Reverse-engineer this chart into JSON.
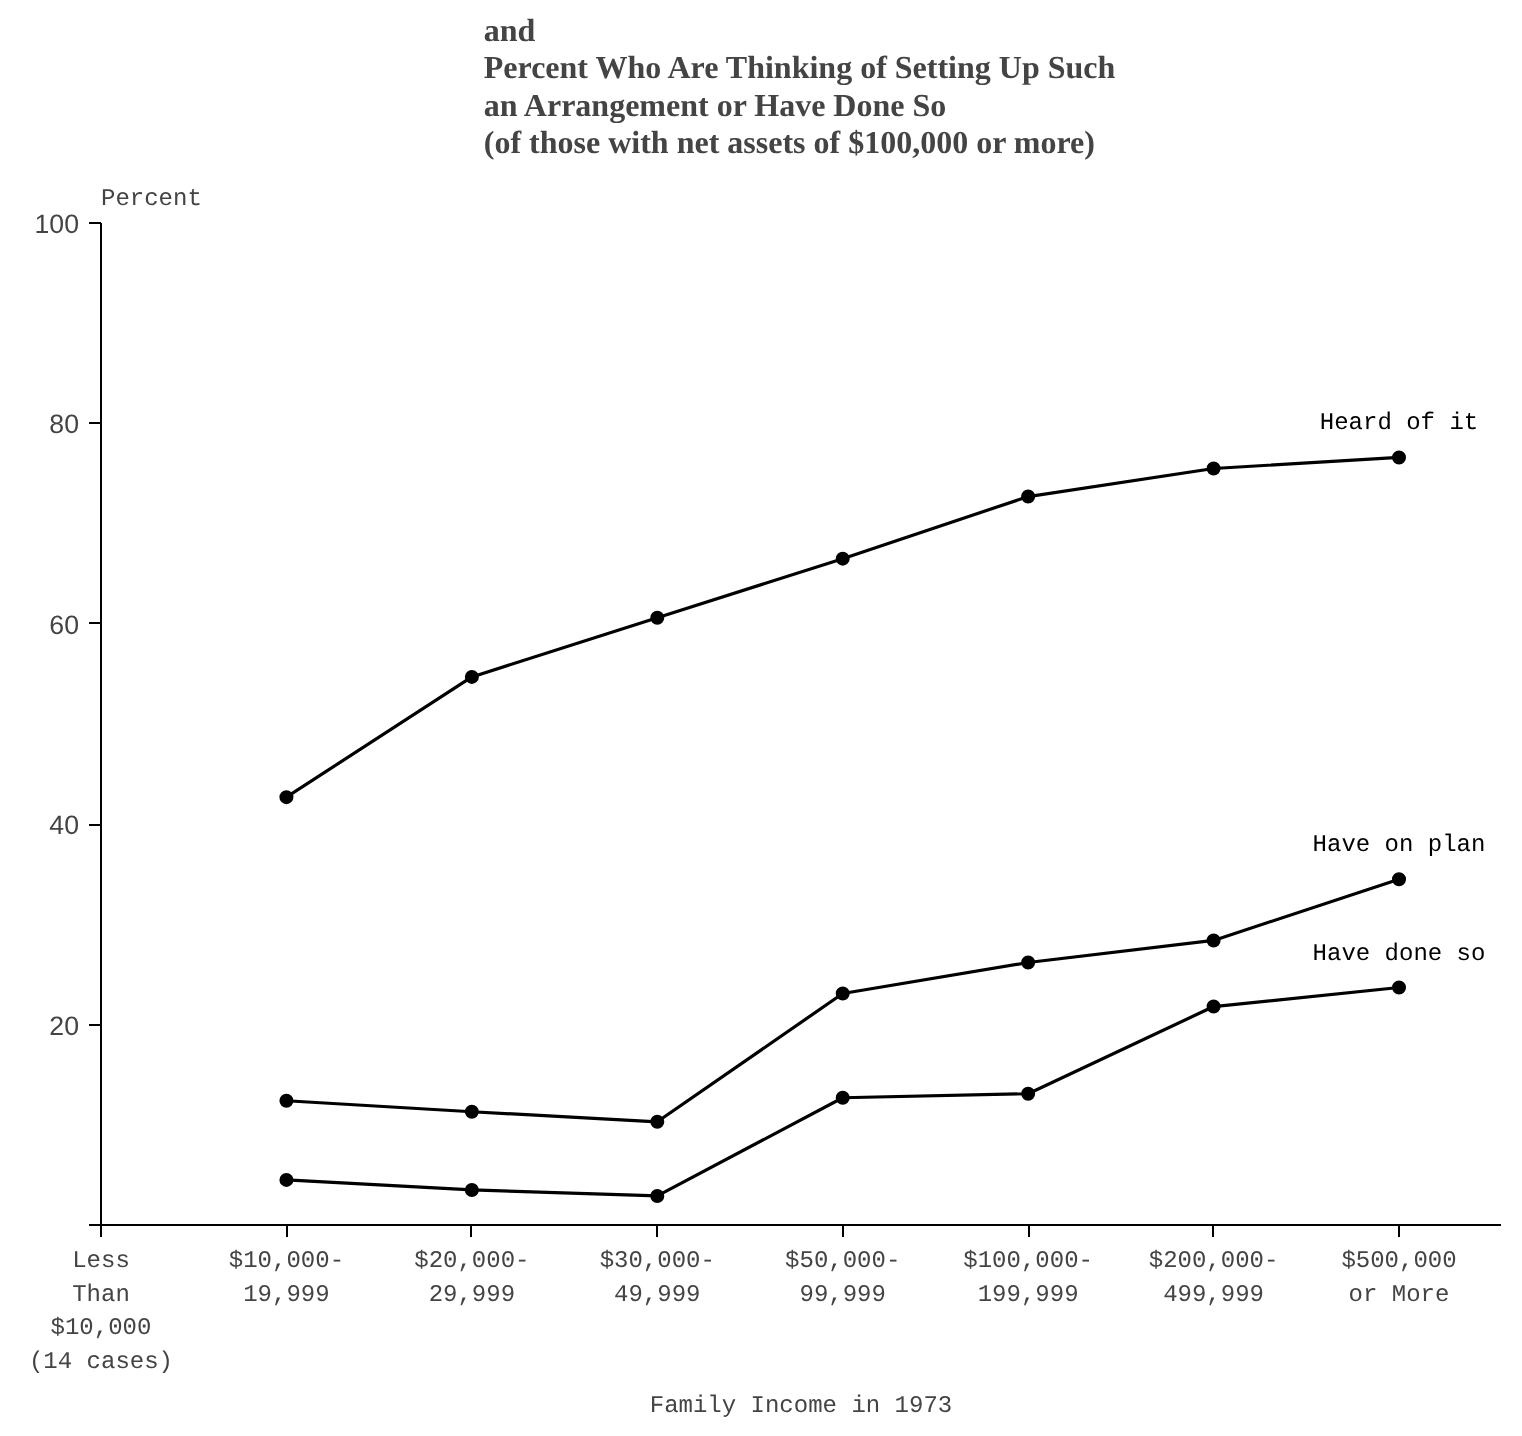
{
  "chart_data": {
    "type": "line",
    "title": "and\nPercent Who Are Thinking of Setting Up Such\nan Arrangement or Have Done So\n(of those with net assets of $100,000 or more)",
    "ylabel": "Percent",
    "xlabel": "Family Income in 1973",
    "categories": [
      "Less\nThan\n$10,000\n(14 cases)",
      "$10,000-\n19,999",
      "$20,000-\n29,999",
      "$30,000-\n49,999",
      "$50,000-\n99,999",
      "$100,000-\n199,999",
      "$200,000-\n499,999",
      "$500,000\nor More"
    ],
    "series": [
      {
        "name": "Heard of it",
        "color": "#000000",
        "values": [
          null,
          42.7,
          54.7,
          60.6,
          66.5,
          72.7,
          75.5,
          76.6
        ]
      },
      {
        "name": "Have on plan",
        "color": "#000000",
        "values": [
          null,
          12.4,
          11.3,
          10.3,
          23.1,
          26.2,
          28.4,
          34.5
        ]
      },
      {
        "name": "Have done so",
        "color": "#000000",
        "values": [
          null,
          4.5,
          3.5,
          2.9,
          12.7,
          13.1,
          21.8,
          23.7
        ]
      }
    ],
    "ylim": [
      0,
      100
    ],
    "yticks": [
      {
        "value": 0,
        "label": null
      },
      20,
      40,
      60,
      80,
      100
    ],
    "grid": false,
    "marker": "circle",
    "line_style": "solid"
  }
}
